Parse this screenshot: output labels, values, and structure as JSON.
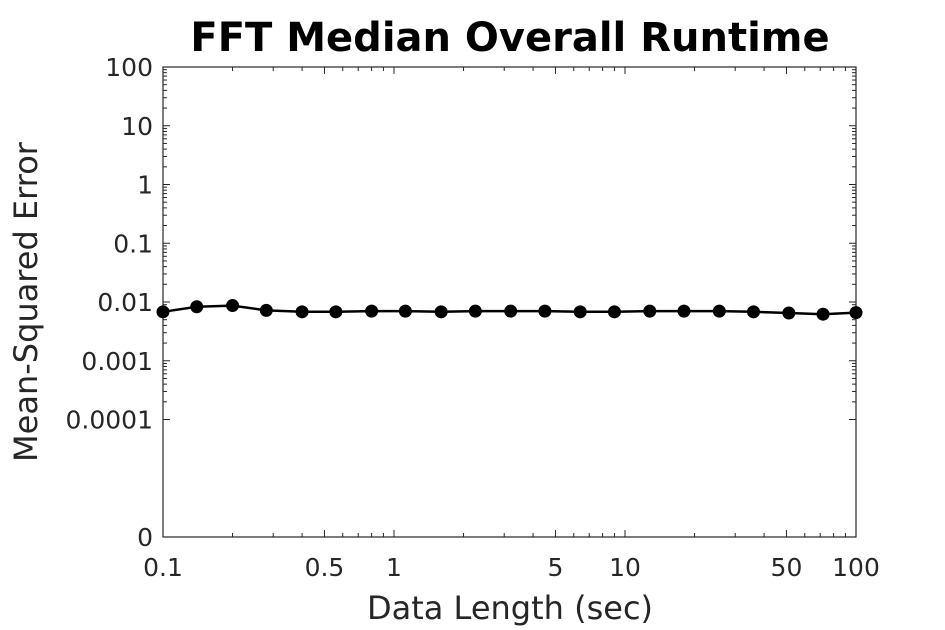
{
  "chart_data": {
    "type": "line",
    "title": "FFT Median Overall Runtime",
    "xlabel": "Data Length (sec)",
    "ylabel": "Mean-Squared Error",
    "xscale": "log",
    "yscale": "log",
    "xlim": [
      0.1,
      100
    ],
    "ylim_display": [
      0,
      100
    ],
    "grid": false,
    "x_ticks": [
      {
        "value": 0.1,
        "label": "0.1"
      },
      {
        "value": 0.5,
        "label": "0.5"
      },
      {
        "value": 1,
        "label": "1"
      },
      {
        "value": 5,
        "label": "5"
      },
      {
        "value": 10,
        "label": "10"
      },
      {
        "value": 50,
        "label": "50"
      },
      {
        "value": 100,
        "label": "100"
      }
    ],
    "y_ticks": [
      {
        "value": 100,
        "label": "100"
      },
      {
        "value": 10,
        "label": "10"
      },
      {
        "value": 1,
        "label": "1"
      },
      {
        "value": 0.1,
        "label": "0.1"
      },
      {
        "value": 0.01,
        "label": "0.01"
      },
      {
        "value": 0.001,
        "label": "0.001"
      },
      {
        "value": 0.0001,
        "label": "0.0001"
      },
      {
        "value": 0,
        "label": "0"
      }
    ],
    "series": [
      {
        "color": "#000000",
        "marker": "circle",
        "x": [
          0.1,
          0.14,
          0.2,
          0.28,
          0.4,
          0.56,
          0.8,
          1.12,
          1.6,
          2.25,
          3.2,
          4.5,
          6.4,
          9,
          12.8,
          18,
          25.6,
          36,
          51.2,
          72,
          100
        ],
        "y": [
          0.0068,
          0.0083,
          0.0087,
          0.0072,
          0.0068,
          0.0068,
          0.007,
          0.007,
          0.0068,
          0.007,
          0.007,
          0.007,
          0.0068,
          0.0068,
          0.007,
          0.007,
          0.007,
          0.0068,
          0.0065,
          0.0062,
          0.0066
        ]
      }
    ]
  }
}
